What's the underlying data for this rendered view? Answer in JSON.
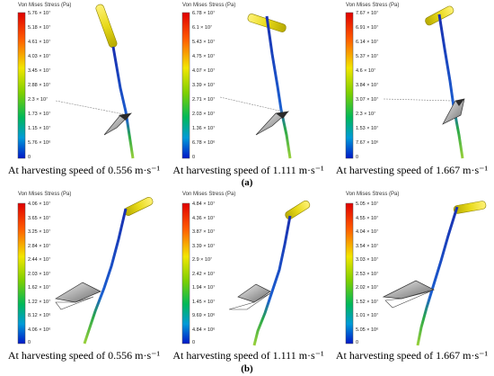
{
  "legend_title": "Von Mises Stress (Pa)",
  "subfigure_labels": [
    "(a)",
    "(b)"
  ],
  "panels": [
    {
      "caption": "At harvesting speed of 0.556 m·s⁻¹",
      "ticks": [
        "5.76 × 10⁷",
        "5.18 × 10⁷",
        "4.61 × 10⁷",
        "4.03 × 10⁷",
        "3.45 × 10⁷",
        "2.88 × 10⁷",
        "2.3 × 10⁷",
        "1.73 × 10⁷",
        "1.15 × 10⁷",
        "5.76 × 10⁶",
        "0"
      ]
    },
    {
      "caption": "At harvesting speed of 1.111 m·s⁻¹",
      "ticks": [
        "6.78 × 10⁷",
        "6.1 × 10⁷",
        "5.43 × 10⁷",
        "4.75 × 10⁷",
        "4.07 × 10⁷",
        "3.39 × 10⁷",
        "2.71 × 10⁷",
        "2.03 × 10⁷",
        "1.36 × 10⁷",
        "6.78 × 10⁶",
        "0"
      ]
    },
    {
      "caption": "At harvesting speed of 1.667 m·s⁻¹",
      "ticks": [
        "7.67 × 10⁷",
        "6.91 × 10⁷",
        "6.14 × 10⁷",
        "5.37 × 10⁷",
        "4.6 × 10⁷",
        "3.84 × 10⁷",
        "3.07 × 10⁷",
        "2.3 × 10⁷",
        "1.53 × 10⁷",
        "7.67 × 10⁶",
        "0"
      ]
    },
    {
      "caption": "At harvesting speed of 0.556 m·s⁻¹",
      "ticks": [
        "4.06 × 10⁷",
        "3.65 × 10⁷",
        "3.25 × 10⁷",
        "2.84 × 10⁷",
        "2.44 × 10⁷",
        "2.03 × 10⁷",
        "1.62 × 10⁷",
        "1.22 × 10⁷",
        "8.12 × 10⁶",
        "4.06 × 10⁶",
        "0"
      ]
    },
    {
      "caption": "At harvesting speed of 1.111 m·s⁻¹",
      "ticks": [
        "4.84 × 10⁷",
        "4.36 × 10⁷",
        "3.87 × 10⁷",
        "3.39 × 10⁷",
        "2.9 × 10⁷",
        "2.42 × 10⁷",
        "1.94 × 10⁷",
        "1.45 × 10⁷",
        "9.69 × 10⁶",
        "4.84 × 10⁶",
        "0"
      ]
    },
    {
      "caption": "At harvesting speed of 1.667 m·s⁻¹",
      "ticks": [
        "5.05 × 10⁷",
        "4.55 × 10⁷",
        "4.04 × 10⁷",
        "3.54 × 10⁷",
        "3.03 × 10⁷",
        "2.53 × 10⁷",
        "2.02 × 10⁷",
        "1.52 × 10⁷",
        "1.01 × 10⁷",
        "5.05 × 10⁶",
        "0"
      ]
    }
  ]
}
